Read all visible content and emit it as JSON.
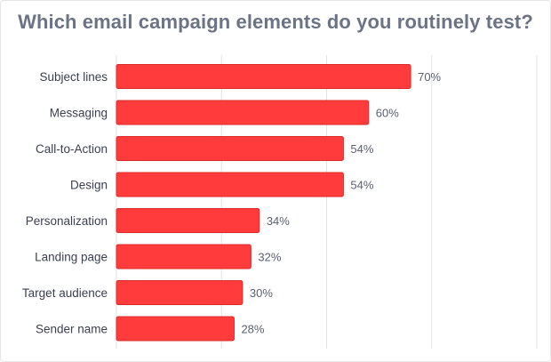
{
  "chart_data": {
    "type": "bar",
    "orientation": "horizontal",
    "title": "Which email campaign elements do you routinely test?",
    "categories": [
      "Subject lines",
      "Messaging",
      "Call-to-Action",
      "Design",
      "Personalization",
      "Landing page",
      "Target audience",
      "Sender name"
    ],
    "values": [
      70,
      60,
      54,
      54,
      34,
      32,
      30,
      28
    ],
    "value_labels": [
      "70%",
      "60%",
      "54%",
      "54%",
      "34%",
      "32%",
      "30%",
      "28%"
    ],
    "unit": "%",
    "xlim": [
      0,
      100
    ],
    "grid": true,
    "bar_color": "#ff3b3b",
    "bar_stroke": "#d92c2c",
    "grid_color": "#e3e3e8",
    "label_color": "#3c4152",
    "title_color": "#6b7385"
  }
}
